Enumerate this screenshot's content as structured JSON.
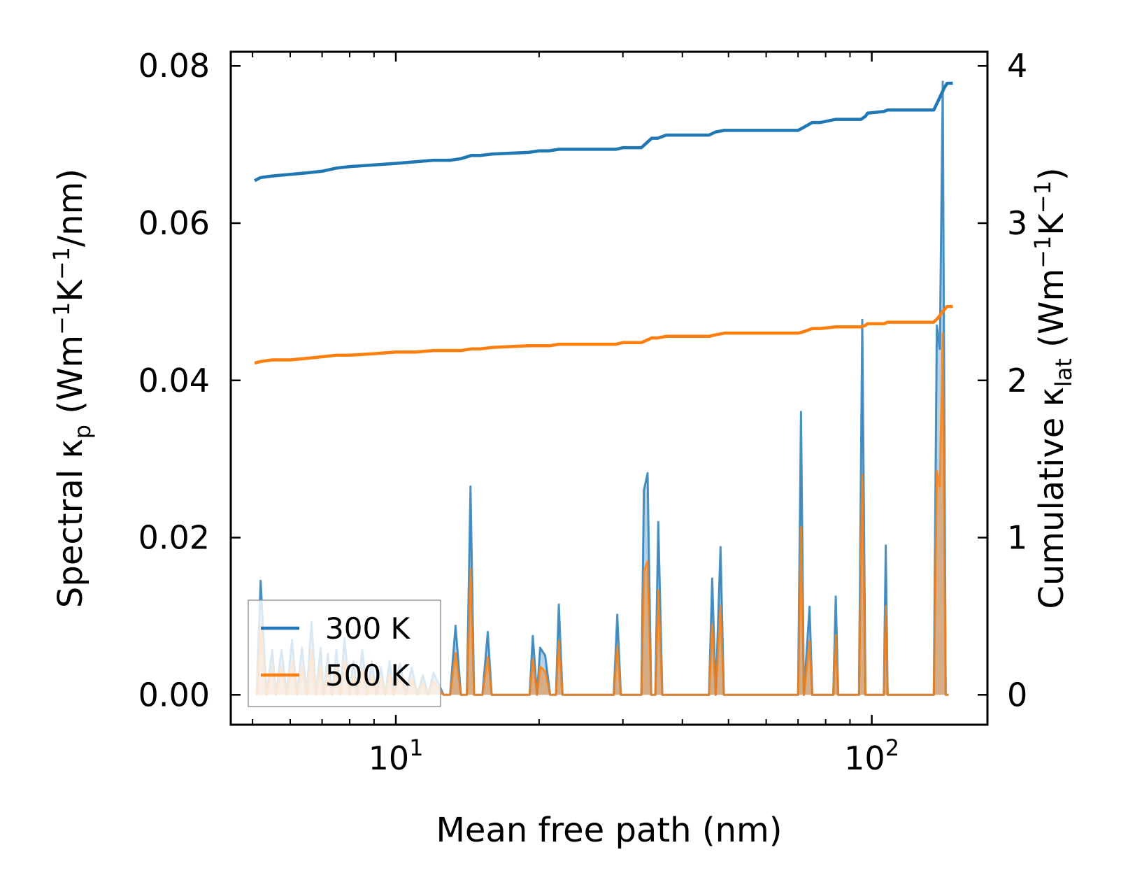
{
  "chart_data": {
    "type": "line",
    "xscale": "log",
    "xlim": [
      4.5,
      175
    ],
    "ylim_left": [
      -0.0038,
      0.0818
    ],
    "ylim_right": [
      -0.19,
      4.09
    ],
    "xlabel": "Mean free path (nm)",
    "ylabel_left": {
      "main": "Spectral κ",
      "sub": "p",
      "unit_a": " (Wm",
      "sup1": "−1",
      "unit_b": "K",
      "sup2": "−1",
      "unit_c": "/nm)"
    },
    "ylabel_right": {
      "main": "Cumulative κ",
      "sub": "lat",
      "unit_a": " (Wm",
      "sup1": "−1",
      "unit_b": "K",
      "sup2": "−1",
      "unit_c": ")"
    },
    "x_ticks": [
      {
        "value": 10,
        "base": "10",
        "exp": "1"
      },
      {
        "value": 100,
        "base": "10",
        "exp": "2"
      }
    ],
    "y_ticks_left": [
      {
        "value": 0.0,
        "label": "0.00"
      },
      {
        "value": 0.02,
        "label": "0.02"
      },
      {
        "value": 0.04,
        "label": "0.04"
      },
      {
        "value": 0.06,
        "label": "0.06"
      },
      {
        "value": 0.08,
        "label": "0.08"
      }
    ],
    "y_ticks_right": [
      {
        "value": 0,
        "label": "0"
      },
      {
        "value": 1,
        "label": "1"
      },
      {
        "value": 2,
        "label": "2"
      },
      {
        "value": 3,
        "label": "3"
      },
      {
        "value": 4,
        "label": "4"
      }
    ],
    "legend": {
      "position": "lower-left",
      "entries": [
        "300 K",
        "500 K"
      ]
    },
    "colors": {
      "series_300K": "#1f77b4",
      "series_500K": "#ff7f0e"
    },
    "spectral_series": [
      {
        "name": "300 K",
        "axis": "left",
        "x": [
          5.1,
          5.2,
          5.35,
          5.5,
          5.6,
          5.75,
          5.9,
          6.05,
          6.2,
          6.35,
          6.5,
          6.65,
          6.8,
          6.95,
          7.05,
          7.2,
          7.35,
          7.5,
          7.65,
          7.8,
          8.0,
          8.15,
          8.3,
          8.5,
          8.7,
          8.9,
          9.1,
          9.3,
          9.5,
          9.7,
          9.9,
          10.2,
          10.5,
          10.8,
          11.1,
          11.4,
          11.7,
          12.0,
          12.6,
          13.0,
          13.35,
          13.7,
          14.1,
          14.35,
          14.6,
          15.2,
          15.6,
          15.9,
          16.2,
          16.6,
          19.1,
          19.4,
          19.8,
          20.1,
          20.6,
          21.1,
          21.7,
          22.0,
          22.4,
          28.7,
          29.2,
          29.7,
          32.8,
          33.2,
          33.8,
          34.4,
          35.1,
          35.6,
          36.3,
          36.9,
          37.6,
          45.5,
          46.2,
          47.0,
          48.1,
          48.9,
          49.8,
          70.0,
          71.0,
          72.0,
          74.0,
          75.0,
          76.0,
          83.0,
          84.0,
          85.0,
          94.0,
          95.5,
          97.0,
          106.0,
          107.0,
          108.0,
          135.0,
          137.0,
          139.0,
          141.0,
          143.0,
          145.0
        ],
        "values": [
          0,
          0.0145,
          0,
          0.0057,
          0,
          0.0057,
          0,
          0.007,
          0,
          0.006,
          0,
          0.0093,
          0,
          0.006,
          0,
          0.0052,
          0,
          0.0057,
          0,
          0.0072,
          0,
          0.0043,
          0,
          0.0057,
          0,
          0.0043,
          0,
          0.0035,
          0,
          0.0043,
          0,
          0.004,
          0,
          0.0035,
          0,
          0.0025,
          0,
          0.0028,
          0,
          0,
          0.0088,
          0,
          0,
          0.0265,
          0,
          0,
          0.008,
          0,
          0,
          0,
          0,
          0.0075,
          0,
          0.006,
          0.005,
          0,
          0,
          0.0115,
          0,
          0,
          0.0102,
          0,
          0,
          0.026,
          0.0282,
          0,
          0,
          0.022,
          0,
          0,
          0,
          0,
          0.0148,
          0,
          0.0188,
          0,
          0,
          0,
          0.036,
          0,
          0.0112,
          0,
          0,
          0,
          0.0125,
          0,
          0,
          0.0477,
          0,
          0,
          0.019,
          0,
          0,
          0.047,
          0.044,
          0.078,
          0,
          0
        ]
      },
      {
        "name": "500 K",
        "axis": "left",
        "x": [
          5.1,
          5.2,
          5.35,
          5.5,
          5.6,
          5.75,
          5.9,
          6.05,
          6.2,
          6.35,
          6.5,
          6.65,
          6.8,
          6.95,
          7.05,
          7.2,
          7.35,
          7.5,
          7.65,
          7.8,
          8.0,
          8.15,
          8.3,
          8.5,
          8.7,
          8.9,
          9.1,
          9.3,
          9.5,
          9.7,
          9.9,
          10.2,
          10.5,
          10.8,
          11.1,
          11.4,
          11.7,
          12.0,
          12.6,
          13.0,
          13.35,
          13.7,
          14.1,
          14.35,
          14.6,
          15.2,
          15.6,
          15.9,
          16.2,
          16.6,
          19.1,
          19.4,
          19.8,
          20.1,
          20.6,
          21.1,
          21.7,
          22.0,
          22.4,
          28.7,
          29.2,
          29.7,
          32.8,
          33.2,
          33.8,
          34.4,
          35.1,
          35.6,
          36.3,
          36.9,
          37.6,
          45.5,
          46.2,
          47.0,
          48.1,
          48.9,
          49.8,
          70.0,
          71.0,
          72.0,
          74.0,
          75.0,
          76.0,
          83.0,
          84.0,
          85.0,
          94.0,
          95.5,
          97.0,
          106.0,
          107.0,
          108.0,
          135.0,
          137.0,
          139.0,
          141.0,
          143.0,
          145.0
        ],
        "values": [
          0,
          0.0088,
          0,
          0.0035,
          0,
          0.0035,
          0,
          0.0042,
          0,
          0.0036,
          0,
          0.0056,
          0,
          0.0036,
          0,
          0.0032,
          0,
          0.0035,
          0,
          0.0044,
          0,
          0.0026,
          0,
          0.0035,
          0,
          0.0026,
          0,
          0.0021,
          0,
          0.0026,
          0,
          0.0024,
          0,
          0.0021,
          0,
          0.0015,
          0,
          0.0017,
          0,
          0,
          0.0053,
          0,
          0,
          0.016,
          0,
          0,
          0.0048,
          0,
          0,
          0,
          0,
          0.0045,
          0,
          0.0036,
          0.003,
          0,
          0,
          0.0069,
          0,
          0,
          0.0062,
          0,
          0,
          0.0157,
          0.017,
          0,
          0,
          0.0133,
          0,
          0,
          0,
          0,
          0.009,
          0,
          0.0113,
          0,
          0,
          0,
          0.0213,
          0,
          0.0068,
          0,
          0,
          0,
          0.0076,
          0,
          0,
          0.028,
          0,
          0,
          0.0113,
          0,
          0,
          0.0285,
          0.0265,
          0.046,
          0,
          0
        ]
      }
    ],
    "cumulative_series": [
      {
        "name": "300 K",
        "axis": "right",
        "x": [
          5.05,
          5.2,
          5.5,
          6.0,
          6.5,
          7.0,
          7.5,
          8.0,
          9.0,
          10.0,
          11.0,
          12.0,
          13.0,
          13.7,
          14.4,
          15.0,
          16.0,
          19.0,
          20.0,
          21.0,
          22.0,
          24.0,
          29.0,
          30.0,
          32.8,
          34.5,
          35.5,
          37.0,
          45.5,
          47.0,
          49.0,
          52.0,
          70.0,
          72.0,
          75.0,
          78.0,
          84.0,
          95.0,
          97.0,
          98.0,
          106.0,
          108.0,
          135.0,
          138.0,
          142.0,
          144.0,
          148.0
        ],
        "values": [
          3.27,
          3.29,
          3.3,
          3.31,
          3.32,
          3.33,
          3.35,
          3.36,
          3.37,
          3.38,
          3.39,
          3.4,
          3.4,
          3.41,
          3.43,
          3.43,
          3.44,
          3.45,
          3.46,
          3.46,
          3.47,
          3.47,
          3.47,
          3.48,
          3.48,
          3.54,
          3.54,
          3.56,
          3.56,
          3.58,
          3.59,
          3.59,
          3.59,
          3.61,
          3.64,
          3.64,
          3.66,
          3.66,
          3.68,
          3.7,
          3.71,
          3.72,
          3.72,
          3.78,
          3.86,
          3.89,
          3.89
        ]
      },
      {
        "name": "500 K",
        "axis": "right",
        "x": [
          5.05,
          5.2,
          5.5,
          6.0,
          6.5,
          7.0,
          7.5,
          8.0,
          9.0,
          10.0,
          11.0,
          12.0,
          13.0,
          13.7,
          14.4,
          15.0,
          16.0,
          19.0,
          20.0,
          21.0,
          22.0,
          24.0,
          29.0,
          30.0,
          32.8,
          34.5,
          35.5,
          37.0,
          45.5,
          47.0,
          49.0,
          52.0,
          70.0,
          72.0,
          75.0,
          78.0,
          84.0,
          95.0,
          97.0,
          98.0,
          106.0,
          108.0,
          135.0,
          138.0,
          142.0,
          144.0,
          148.0
        ],
        "values": [
          2.11,
          2.12,
          2.13,
          2.13,
          2.14,
          2.15,
          2.16,
          2.16,
          2.17,
          2.18,
          2.18,
          2.19,
          2.19,
          2.19,
          2.2,
          2.2,
          2.21,
          2.22,
          2.22,
          2.22,
          2.23,
          2.23,
          2.23,
          2.24,
          2.24,
          2.27,
          2.27,
          2.28,
          2.28,
          2.29,
          2.3,
          2.3,
          2.3,
          2.31,
          2.33,
          2.33,
          2.34,
          2.34,
          2.35,
          2.36,
          2.36,
          2.37,
          2.37,
          2.4,
          2.45,
          2.47,
          2.47
        ]
      }
    ]
  }
}
